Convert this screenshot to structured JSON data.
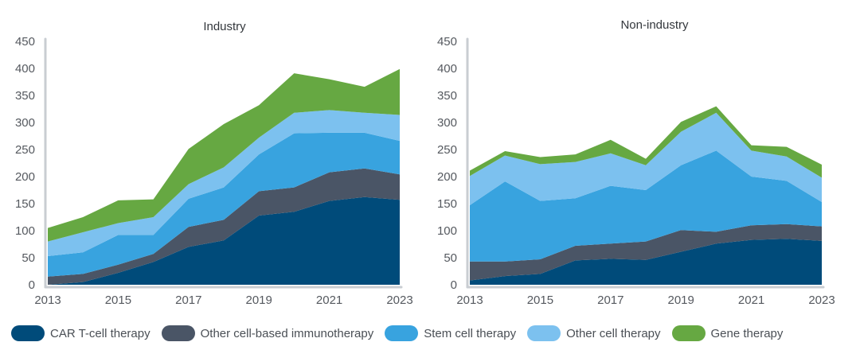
{
  "legend": [
    {
      "name": "CAR T-cell therapy",
      "color": "#004b7a"
    },
    {
      "name": "Other cell-based immunotherapy",
      "color": "#4a5566"
    },
    {
      "name": "Stem cell therapy",
      "color": "#38a3df"
    },
    {
      "name": "Other cell therapy",
      "color": "#7cc1ef"
    },
    {
      "name": "Gene therapy",
      "color": "#66a842"
    }
  ],
  "chart_data": [
    {
      "type": "area",
      "stacked": true,
      "title": "Industry",
      "xlabel": "",
      "ylabel": "",
      "x": [
        2013,
        2014,
        2015,
        2016,
        2017,
        2018,
        2019,
        2020,
        2021,
        2022,
        2023
      ],
      "x_tick_labels": [
        "2013",
        "2015",
        "2017",
        "2019",
        "2021",
        "2023"
      ],
      "y_tick_labels": [
        "0",
        "50",
        "100",
        "150",
        "200",
        "250",
        "300",
        "350",
        "400",
        "450"
      ],
      "ylim": [
        0,
        450
      ],
      "grid": false,
      "legend": "bottom",
      "series": [
        {
          "name": "CAR T-cell therapy",
          "color": "#004b7a",
          "values": [
            0,
            5,
            22,
            42,
            70,
            82,
            128,
            135,
            155,
            162,
            157
          ]
        },
        {
          "name": "Other cell-based immunotherapy",
          "color": "#4a5566",
          "values": [
            15,
            15,
            15,
            15,
            37,
            38,
            45,
            45,
            53,
            53,
            47
          ]
        },
        {
          "name": "Stem cell therapy",
          "color": "#38a3df",
          "values": [
            38,
            40,
            55,
            35,
            52,
            60,
            68,
            100,
            73,
            66,
            62
          ]
        },
        {
          "name": "Other cell therapy",
          "color": "#7cc1ef",
          "values": [
            27,
            37,
            22,
            33,
            27,
            37,
            31,
            38,
            42,
            37,
            48
          ]
        },
        {
          "name": "Gene therapy",
          "color": "#66a842",
          "values": [
            25,
            28,
            42,
            33,
            65,
            80,
            60,
            73,
            57,
            48,
            85
          ]
        }
      ]
    },
    {
      "type": "area",
      "stacked": true,
      "title": "Non-industry",
      "xlabel": "",
      "ylabel": "",
      "x": [
        2013,
        2014,
        2015,
        2016,
        2017,
        2018,
        2019,
        2020,
        2021,
        2022,
        2023
      ],
      "x_tick_labels": [
        "2013",
        "2015",
        "2017",
        "2019",
        "2021",
        "2023"
      ],
      "y_tick_labels": [
        "0",
        "50",
        "100",
        "150",
        "200",
        "250",
        "300",
        "350",
        "400",
        "450"
      ],
      "ylim": [
        0,
        450
      ],
      "grid": false,
      "legend": "bottom",
      "series": [
        {
          "name": "CAR T-cell therapy",
          "color": "#004b7a",
          "values": [
            8,
            16,
            20,
            45,
            48,
            46,
            61,
            76,
            83,
            85,
            81
          ]
        },
        {
          "name": "Other cell-based immunotherapy",
          "color": "#4a5566",
          "values": [
            35,
            27,
            27,
            27,
            28,
            34,
            40,
            22,
            27,
            27,
            27
          ]
        },
        {
          "name": "Stem cell therapy",
          "color": "#38a3df",
          "values": [
            104,
            148,
            108,
            88,
            107,
            95,
            120,
            150,
            90,
            80,
            45
          ]
        },
        {
          "name": "Other cell therapy",
          "color": "#7cc1ef",
          "values": [
            54,
            48,
            68,
            67,
            60,
            46,
            62,
            70,
            48,
            45,
            45
          ]
        },
        {
          "name": "Gene therapy",
          "color": "#66a842",
          "values": [
            10,
            8,
            13,
            14,
            25,
            12,
            18,
            12,
            10,
            18,
            24
          ]
        }
      ]
    }
  ]
}
